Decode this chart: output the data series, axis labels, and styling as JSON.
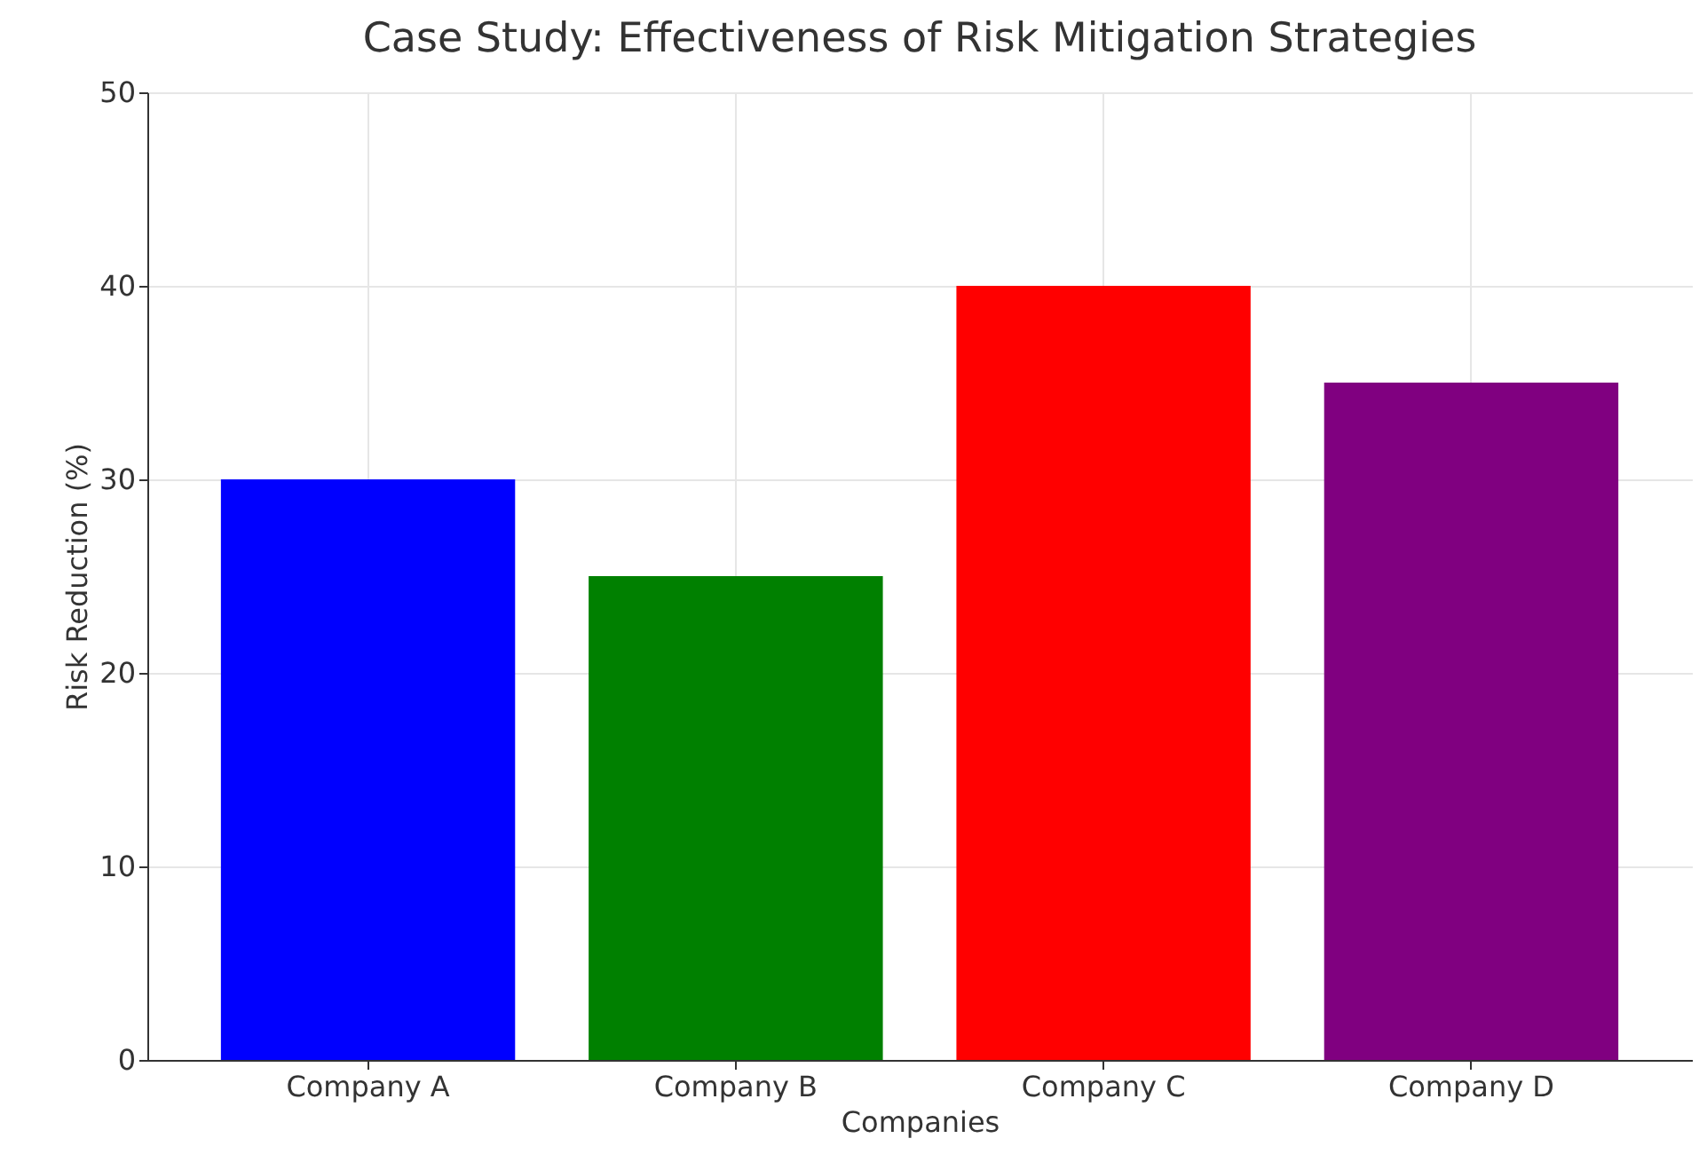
{
  "chart_data": {
    "type": "bar",
    "title": "Case Study: Effectiveness of Risk Mitigation Strategies",
    "xlabel": "Companies",
    "ylabel": "Risk Reduction (%)",
    "categories": [
      "Company A",
      "Company B",
      "Company C",
      "Company D"
    ],
    "values": [
      30,
      25,
      40,
      35
    ],
    "colors": [
      "#0000ff",
      "#008000",
      "#ff0000",
      "#800080"
    ],
    "ylim": [
      0,
      50
    ],
    "yticks": [
      0,
      10,
      20,
      30,
      40,
      50
    ],
    "grid": true
  }
}
